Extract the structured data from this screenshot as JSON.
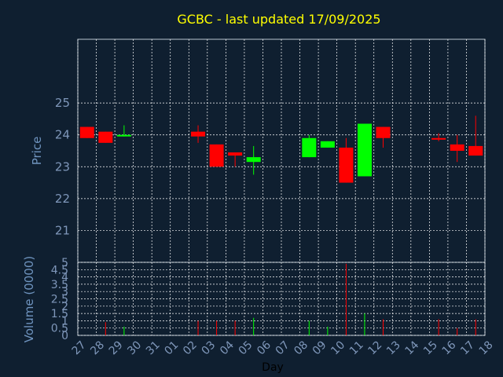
{
  "chart_data": {
    "type": "candlestick",
    "title": "GCBC - last updated 17/09/2025",
    "xlabel": "Day",
    "ylabel_price": "Price",
    "ylabel_volume": "Volume (0000)",
    "price_ylim": [
      20,
      27
    ],
    "price_ticks": [
      "21",
      "22",
      "23",
      "24",
      "25"
    ],
    "volume_ylim": [
      0,
      5
    ],
    "volume_ticks": [
      "0",
      "0.5",
      "1",
      "1.5",
      "2",
      "2.5",
      "3",
      "3.5",
      "4",
      "4.5",
      "5"
    ],
    "x_ticks": [
      "27",
      "28",
      "29",
      "30",
      "31",
      "01",
      "02",
      "03",
      "04",
      "05",
      "06",
      "07",
      "08",
      "09",
      "10",
      "11",
      "12",
      "13",
      "14",
      "15",
      "16",
      "17",
      "18"
    ],
    "grid": true,
    "colors": {
      "up": "#00ff00",
      "down": "#ff0000",
      "background": "#0f1f30",
      "grid": "#ffffff",
      "title": "#ffff00",
      "axis_text": "#7f97ba"
    },
    "candles": [
      {
        "day": "27",
        "open": 24.25,
        "high": 24.25,
        "low": 23.9,
        "close": 23.9,
        "volume": 0.0
      },
      {
        "day": "28",
        "open": 24.1,
        "high": 24.1,
        "low": 23.75,
        "close": 23.75,
        "volume": 0.9
      },
      {
        "day": "29",
        "open": 23.95,
        "high": 24.3,
        "low": 23.95,
        "close": 24.0,
        "volume": 0.6
      },
      {
        "day": "02",
        "open": 24.1,
        "high": 24.3,
        "low": 23.75,
        "close": 23.95,
        "volume": 1.0
      },
      {
        "day": "03",
        "open": 23.7,
        "high": 23.7,
        "low": 23.0,
        "close": 23.0,
        "volume": 1.0
      },
      {
        "day": "04",
        "open": 23.45,
        "high": 23.45,
        "low": 23.0,
        "close": 23.35,
        "volume": 1.0
      },
      {
        "day": "05",
        "open": 23.15,
        "high": 23.65,
        "low": 22.75,
        "close": 23.3,
        "volume": 1.2
      },
      {
        "day": "08",
        "open": 23.3,
        "high": 24.0,
        "low": 23.3,
        "close": 23.9,
        "volume": 1.0
      },
      {
        "day": "09",
        "open": 23.6,
        "high": 23.8,
        "low": 23.6,
        "close": 23.8,
        "volume": 0.6
      },
      {
        "day": "10",
        "open": 23.6,
        "high": 23.9,
        "low": 22.5,
        "close": 22.5,
        "volume": 4.9
      },
      {
        "day": "11",
        "open": 22.7,
        "high": 24.35,
        "low": 22.7,
        "close": 24.35,
        "volume": 1.5
      },
      {
        "day": "12",
        "open": 24.25,
        "high": 24.25,
        "low": 23.6,
        "close": 23.9,
        "volume": 1.1
      },
      {
        "day": "15",
        "open": 23.9,
        "high": 24.05,
        "low": 23.8,
        "close": 23.85,
        "volume": 1.1
      },
      {
        "day": "16",
        "open": 23.7,
        "high": 24.0,
        "low": 23.15,
        "close": 23.5,
        "volume": 0.5
      },
      {
        "day": "17",
        "open": 23.65,
        "high": 24.6,
        "low": 23.35,
        "close": 23.35,
        "volume": 1.1
      }
    ]
  }
}
